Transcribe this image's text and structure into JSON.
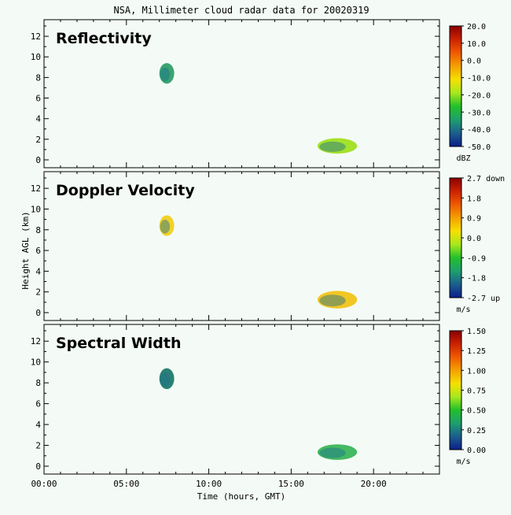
{
  "window": {
    "title": "NSA, Millimeter cloud radar data for 20020319"
  },
  "chart_data": {
    "type": "heatmap",
    "title": "NSA, Millimeter cloud radar data for 20020319",
    "xlabel": "Time (hours, GMT)",
    "ylabel": "Height AGL (km)",
    "xlim": [
      0,
      24
    ],
    "ylim": [
      0,
      13
    ],
    "x_ticks": [
      "00:00",
      "05:00",
      "10:00",
      "15:00",
      "20:00"
    ],
    "y_ticks": [
      "0",
      "2",
      "4",
      "6",
      "8",
      "10",
      "12"
    ],
    "grid": false,
    "panels": [
      {
        "title": "Reflectivity",
        "colorbar": {
          "labels": [
            "20.0",
            "10.0",
            "0.0",
            "-10.0",
            "-20.0",
            "-30.0",
            "-40.0",
            "-50.0"
          ],
          "unit": "dBZ",
          "range": [
            -50,
            20
          ]
        },
        "features": [
          {
            "name": "upper-cloud",
            "t": [
              7.0,
              7.9
            ],
            "h": [
              7.4,
              9.4
            ],
            "color": "#2f9f6a"
          },
          {
            "name": "lower-cloud",
            "t": [
              16.6,
              19.0
            ],
            "h": [
              0.6,
              2.1
            ],
            "color": "#a0e020"
          }
        ]
      },
      {
        "title": "Doppler Velocity",
        "colorbar": {
          "labels": [
            "2.7 down",
            "1.8",
            "0.9",
            "0.0",
            "-0.9",
            "-1.8",
            "-2.7 up"
          ],
          "unit": "m/s",
          "range": [
            -2.7,
            2.7
          ]
        },
        "features": [
          {
            "name": "upper-cloud",
            "t": [
              7.0,
              7.9
            ],
            "h": [
              7.4,
              9.4
            ],
            "color": "#f0d020"
          },
          {
            "name": "lower-cloud",
            "t": [
              16.6,
              19.0
            ],
            "h": [
              0.4,
              2.1
            ],
            "color": "#f2c417"
          }
        ]
      },
      {
        "title": "Spectral Width",
        "colorbar": {
          "labels": [
            "1.50",
            "1.25",
            "1.00",
            "0.75",
            "0.50",
            "0.25",
            "0.00"
          ],
          "unit": "m/s",
          "range": [
            0,
            1.5
          ]
        },
        "features": [
          {
            "name": "upper-cloud",
            "t": [
              7.0,
              7.9
            ],
            "h": [
              7.4,
              9.4
            ],
            "color": "#1f7a6c"
          },
          {
            "name": "lower-cloud",
            "t": [
              16.6,
              19.0
            ],
            "h": [
              0.6,
              2.1
            ],
            "color": "#3cb65a"
          }
        ]
      }
    ]
  }
}
